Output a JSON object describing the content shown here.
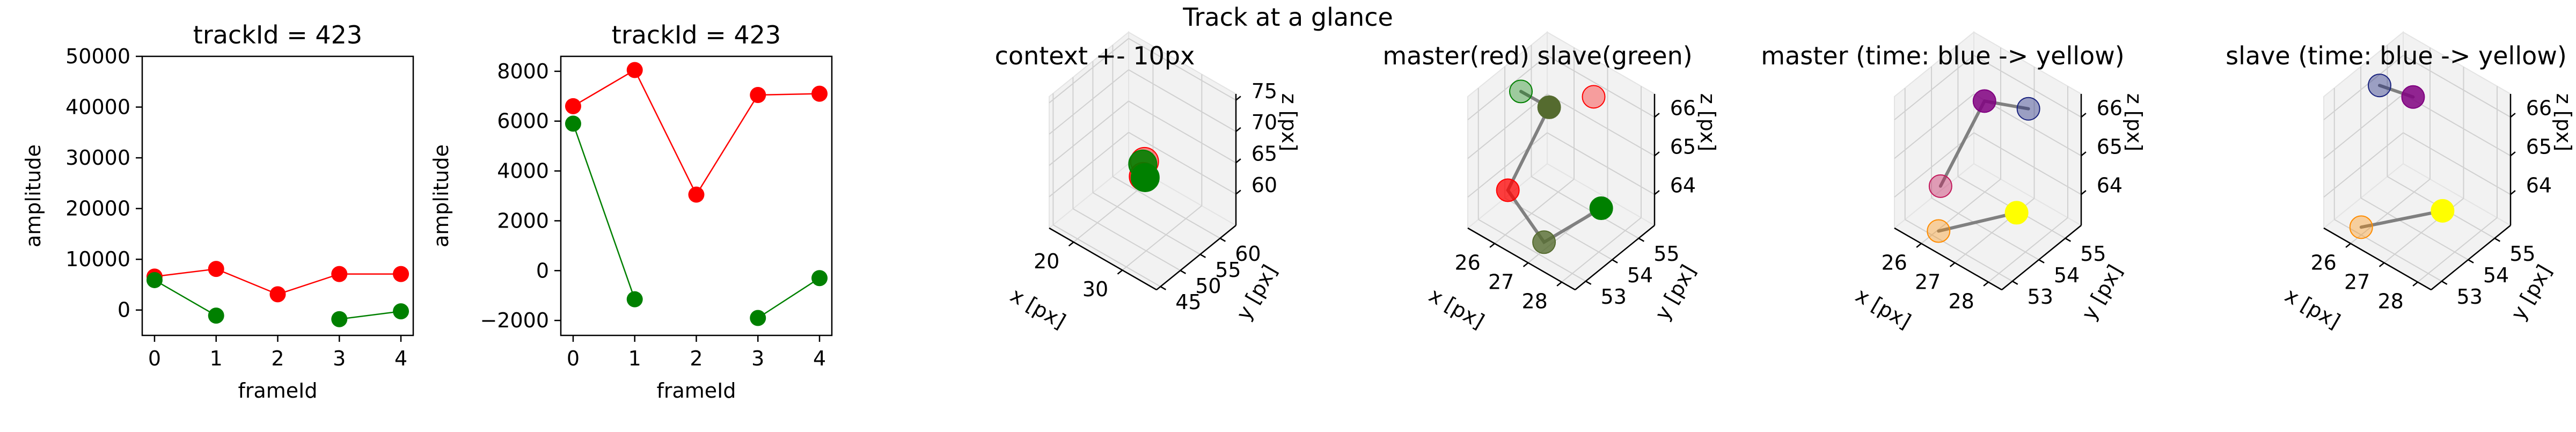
{
  "suptitle": "Track at a glance",
  "colors": {
    "master": "#ff0000",
    "slave": "#008000",
    "link": "#808080",
    "pane": "#f2f2f2",
    "grid": "#d0d0d0"
  },
  "chart_data": [
    {
      "type": "line",
      "title": "trackId = 423",
      "xlabel": "frameId",
      "ylabel": "amplitude",
      "xlim": [
        -0.2,
        4.2
      ],
      "ylim": [
        -5000,
        50000
      ],
      "xticks": [
        0,
        1,
        2,
        3,
        4
      ],
      "yticks": [
        0,
        10000,
        20000,
        30000,
        40000,
        50000
      ],
      "series": [
        {
          "role": "master",
          "color": "#ff0000",
          "points": [
            [
              0,
              6600
            ],
            [
              1,
              8100
            ],
            [
              2,
              3100
            ],
            [
              3,
              7100
            ],
            [
              4,
              7100
            ]
          ]
        },
        {
          "role": "slave",
          "color": "#008000",
          "segments": [
            [
              [
                0,
                5900
              ],
              [
                1,
                -1100
              ]
            ],
            [
              [
                3,
                -1800
              ],
              [
                4,
                -250
              ]
            ]
          ]
        }
      ]
    },
    {
      "type": "line",
      "title": "trackId = 423",
      "xlabel": "frameId",
      "ylabel": "amplitude",
      "xlim": [
        -0.2,
        4.2
      ],
      "ylim": [
        -2600,
        8600
      ],
      "xticks": [
        0,
        1,
        2,
        3,
        4
      ],
      "yticks": [
        -2000,
        0,
        2000,
        4000,
        6000,
        8000
      ],
      "series": [
        {
          "role": "master",
          "color": "#ff0000",
          "points": [
            [
              0,
              6600
            ],
            [
              1,
              8050
            ],
            [
              2,
              3050
            ],
            [
              3,
              7050
            ],
            [
              4,
              7100
            ]
          ]
        },
        {
          "role": "slave",
          "color": "#008000",
          "segments": [
            [
              [
                0,
                5900
              ],
              [
                1,
                -1150
              ]
            ],
            [
              [
                3,
                -1900
              ],
              [
                4,
                -300
              ]
            ]
          ]
        }
      ]
    },
    {
      "type": "scatter3d",
      "title": "context +- 10px",
      "xlabel": "x [px]",
      "ylabel": "y [px]",
      "zlabel": "z [px]",
      "xlim": [
        15,
        37
      ],
      "ylim": [
        44,
        64
      ],
      "zlim": [
        55,
        76
      ],
      "xticks": [
        20,
        30
      ],
      "yticks": [
        45,
        50,
        55,
        60
      ],
      "zticks": [
        60,
        65,
        70,
        75
      ],
      "points": [
        {
          "x": 26.4,
          "y": 54.0,
          "z": 65.6,
          "color": "#ff0000",
          "alpha": 0.45
        },
        {
          "x": 26.8,
          "y": 53.2,
          "z": 63.8,
          "color": "#ff0000",
          "alpha": 0.8
        },
        {
          "x": 26.2,
          "y": 53.8,
          "z": 65.2,
          "color": "#008000",
          "alpha": 0.9
        },
        {
          "x": 27.1,
          "y": 53.3,
          "z": 63.7,
          "color": "#008000",
          "alpha": 1.0
        }
      ],
      "lines": [
        [
          [
            26.2,
            53.8,
            65.2
          ],
          [
            27.1,
            53.3,
            63.7
          ]
        ]
      ]
    },
    {
      "type": "scatter3d",
      "title": "master(red) slave(green)",
      "xlabel": "x [px]",
      "ylabel": "y [px]",
      "zlabel": "z [px]",
      "xlim": [
        25.2,
        28.4
      ],
      "ylim": [
        52.6,
        55.6
      ],
      "zlim": [
        63.2,
        66.6
      ],
      "xticks": [
        26,
        27,
        28
      ],
      "yticks": [
        53,
        54,
        55
      ],
      "zticks": [
        64,
        65,
        66
      ],
      "points": [
        {
          "x": 25.6,
          "y": 54.1,
          "z": 66.1,
          "color": "#008000",
          "alpha": 0.35
        },
        {
          "x": 26.6,
          "y": 53.9,
          "z": 66.3,
          "color": "#556b2f",
          "alpha": 1.0
        },
        {
          "x": 26.9,
          "y": 55.2,
          "z": 66.0,
          "color": "#ff0000",
          "alpha": 0.35
        },
        {
          "x": 26.0,
          "y": 53.1,
          "z": 64.3,
          "color": "#ff0000",
          "alpha": 0.75
        },
        {
          "x": 27.6,
          "y": 54.6,
          "z": 63.8,
          "color": "#008000",
          "alpha": 1.0
        },
        {
          "x": 27.0,
          "y": 53.2,
          "z": 63.4,
          "color": "#556b2f",
          "alpha": 0.8
        }
      ],
      "lines": [
        [
          [
            26.6,
            53.9,
            66.3
          ],
          [
            26.0,
            53.1,
            64.3
          ],
          [
            27.0,
            53.2,
            63.4
          ],
          [
            27.6,
            54.6,
            63.8
          ]
        ],
        [
          [
            26.6,
            53.9,
            66.3
          ],
          [
            25.6,
            54.1,
            66.1
          ]
        ]
      ]
    },
    {
      "type": "scatter3d",
      "title": "master (time: blue -> yellow)",
      "xlabel": "x [px]",
      "ylabel": "y [px]",
      "zlabel": "z [px]",
      "xlim": [
        25.2,
        28.4
      ],
      "ylim": [
        52.6,
        55.6
      ],
      "zlim": [
        63.2,
        66.6
      ],
      "xticks": [
        26,
        27,
        28
      ],
      "yticks": [
        53,
        54,
        55
      ],
      "zticks": [
        64,
        65,
        66
      ],
      "points": [
        {
          "x": 26.7,
          "y": 54.1,
          "z": 66.4,
          "color": "#800080",
          "alpha": 0.85
        },
        {
          "x": 27.3,
          "y": 55.0,
          "z": 66.0,
          "color": "#1a237e",
          "alpha": 0.4
        },
        {
          "x": 26.1,
          "y": 53.2,
          "z": 64.4,
          "color": "#c2185b",
          "alpha": 0.4
        },
        {
          "x": 26.2,
          "y": 53.0,
          "z": 63.4,
          "color": "#ff8c00",
          "alpha": 0.35
        },
        {
          "x": 27.5,
          "y": 54.3,
          "z": 63.8,
          "color": "#ffff00",
          "alpha": 1.0
        }
      ],
      "lines": [
        [
          [
            26.7,
            54.1,
            66.4
          ],
          [
            26.1,
            53.2,
            64.4
          ]
        ],
        [
          [
            26.7,
            54.1,
            66.4
          ],
          [
            27.3,
            55.0,
            66.0
          ]
        ],
        [
          [
            26.2,
            53.0,
            63.4
          ],
          [
            27.5,
            54.3,
            63.8
          ]
        ]
      ]
    },
    {
      "type": "scatter3d",
      "title": "slave (time: blue -> yellow)",
      "xlabel": "x [px]",
      "ylabel": "y [px]",
      "zlabel": "z [px]",
      "xlim": [
        25.2,
        28.4
      ],
      "ylim": [
        52.6,
        55.6
      ],
      "zlim": [
        63.2,
        66.6
      ],
      "xticks": [
        26,
        27,
        28
      ],
      "yticks": [
        53,
        54,
        55
      ],
      "zticks": [
        64,
        65,
        66
      ],
      "points": [
        {
          "x": 25.6,
          "y": 54.2,
          "z": 66.2,
          "color": "#1a237e",
          "alpha": 0.4
        },
        {
          "x": 26.6,
          "y": 54.2,
          "z": 66.4,
          "color": "#800080",
          "alpha": 0.85
        },
        {
          "x": 26.0,
          "y": 53.0,
          "z": 63.4,
          "color": "#ff8c00",
          "alpha": 0.35
        },
        {
          "x": 27.4,
          "y": 54.3,
          "z": 63.8,
          "color": "#ffff00",
          "alpha": 1.0
        }
      ],
      "lines": [
        [
          [
            25.6,
            54.2,
            66.2
          ],
          [
            26.6,
            54.2,
            66.4
          ]
        ],
        [
          [
            26.0,
            53.0,
            63.4
          ],
          [
            27.4,
            54.3,
            63.8
          ]
        ]
      ]
    }
  ]
}
